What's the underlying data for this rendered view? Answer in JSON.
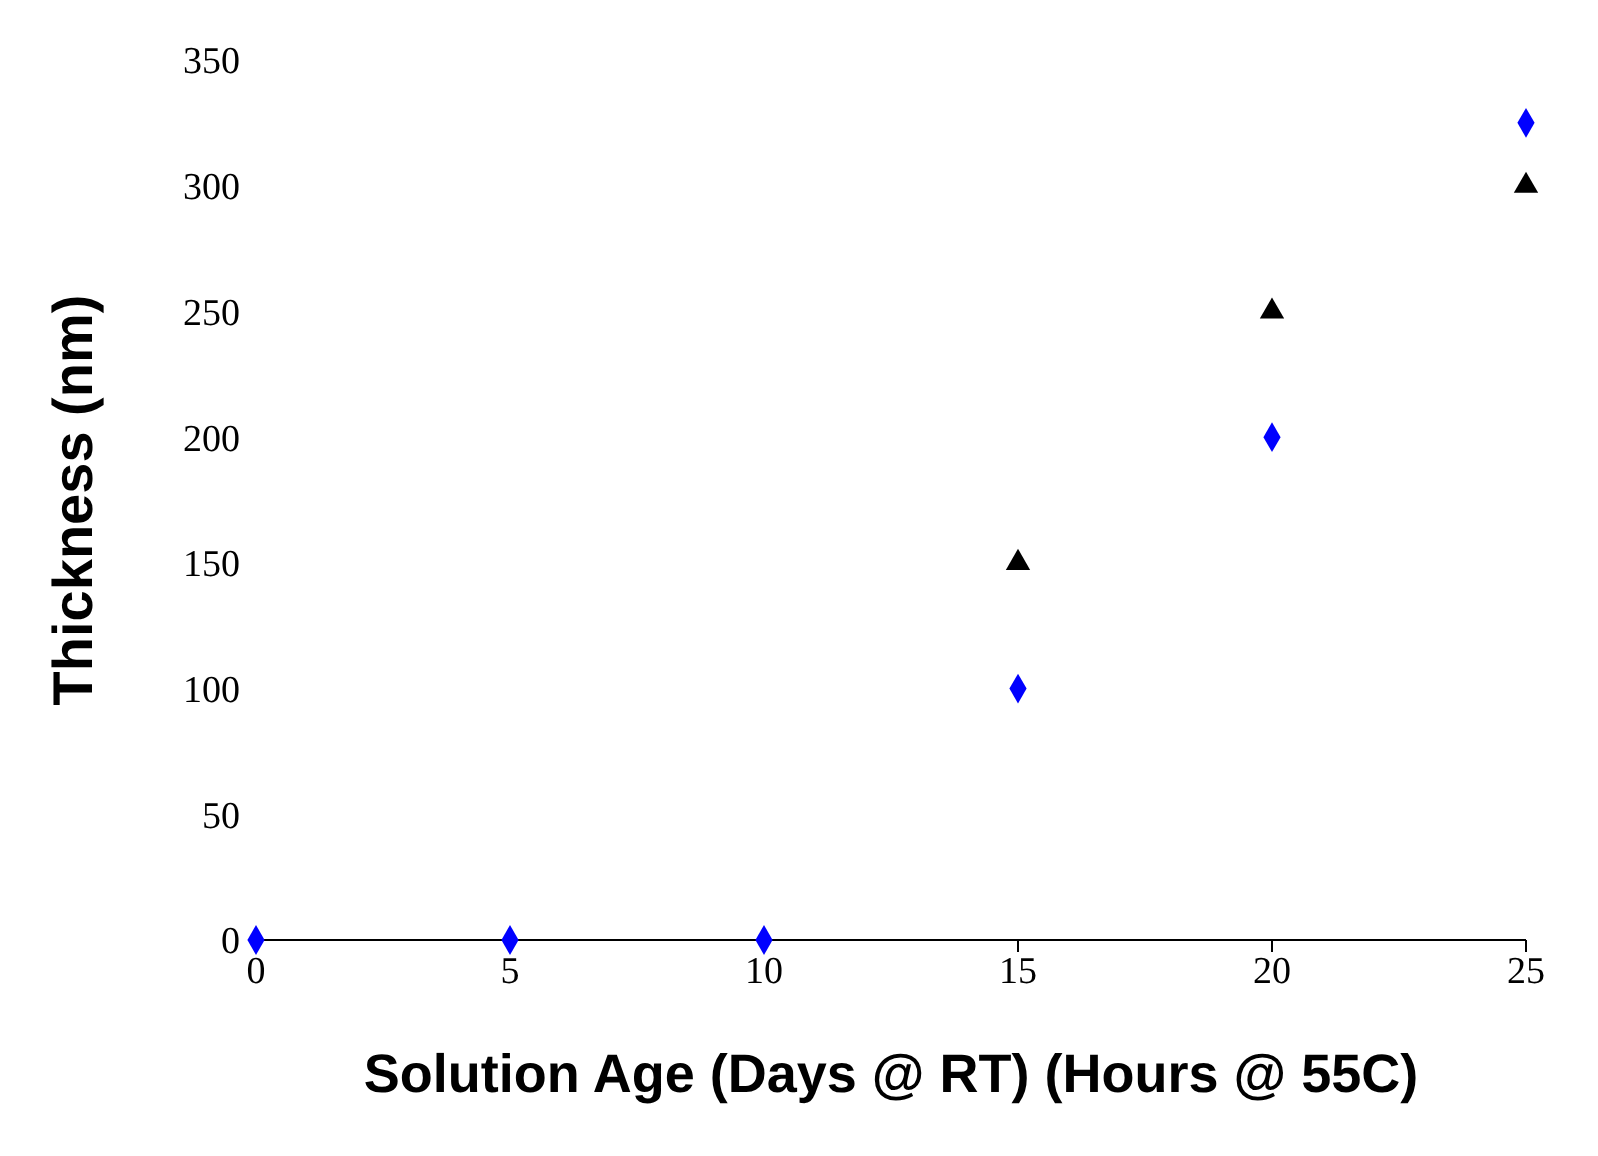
{
  "chart_data": {
    "type": "scatter",
    "xlabel": "Solution Age (Days @ RT) (Hours @ 55C)",
    "ylabel": "Thickness (nm)",
    "x": [
      0,
      5,
      10,
      15,
      20,
      25
    ],
    "series": [
      {
        "color": "#000000",
        "marker": "triangle",
        "values": [
          null,
          null,
          null,
          150,
          250,
          300
        ]
      },
      {
        "color": "#0000ff",
        "marker": "diamond",
        "values": [
          0,
          0,
          0,
          100,
          200,
          325
        ]
      }
    ],
    "xlim": [
      0,
      25
    ],
    "xticks": [
      0,
      5,
      10,
      15,
      20,
      25
    ],
    "ylim": [
      0,
      350
    ],
    "yticks": [
      0,
      50,
      100,
      150,
      200,
      250,
      300,
      350
    ],
    "grid": false,
    "legend": false
  }
}
